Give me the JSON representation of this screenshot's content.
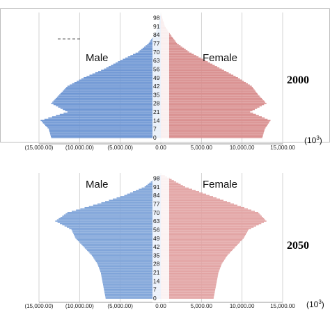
{
  "chart_data": [
    {
      "type": "bar",
      "orientation": "horizontal-pyramid",
      "year_label": "2000",
      "unit_label": "(10",
      "unit_exp": "3",
      "unit_close": ")",
      "male_label": "Male",
      "female_label": "Female",
      "age_ticks": [
        "0",
        "7",
        "14",
        "21",
        "28",
        "35",
        "42",
        "49",
        "56",
        "63",
        "70",
        "77",
        "84",
        "91",
        "98"
      ],
      "x_ticks": [
        "(15,000.00)",
        "(10,000.00)",
        "(5,000.00)",
        "0.00",
        "5,000.00",
        "10,000.00",
        "15,000.00"
      ],
      "xlim": [
        -15000,
        15000
      ],
      "age_range": [
        0,
        100
      ],
      "colors": {
        "male": "#6f97d4",
        "female": "#d98f8f"
      },
      "series": [
        {
          "name": "Male",
          "ages": [
            0,
            7,
            14,
            21,
            28,
            35,
            42,
            49,
            56,
            63,
            70,
            77,
            84,
            91,
            100
          ],
          "values": [
            13500,
            13800,
            14800,
            11500,
            13500,
            12500,
            11500,
            9500,
            7000,
            5000,
            2800,
            1500,
            800,
            300,
            50
          ]
        },
        {
          "name": "Female",
          "ages": [
            0,
            7,
            14,
            21,
            28,
            35,
            42,
            49,
            56,
            63,
            70,
            77,
            84,
            91,
            100
          ],
          "values": [
            12500,
            12800,
            13500,
            11000,
            13000,
            12000,
            11200,
            9500,
            7500,
            5500,
            3500,
            2000,
            1200,
            500,
            80
          ]
        }
      ]
    },
    {
      "type": "bar",
      "orientation": "horizontal-pyramid",
      "year_label": "2050",
      "unit_label": "(10",
      "unit_exp": "3",
      "unit_close": ")",
      "male_label": "Male",
      "female_label": "Female",
      "age_ticks": [
        "0",
        "7",
        "14",
        "21",
        "28",
        "35",
        "42",
        "49",
        "56",
        "63",
        "70",
        "77",
        "84",
        "91",
        "98"
      ],
      "x_ticks": [
        "(15,000.00)",
        "(10,000.00)",
        "(5,000.00)",
        "0.00",
        "5,000.00",
        "10,000.00",
        "15,000.00"
      ],
      "xlim": [
        -15000,
        15000
      ],
      "age_range": [
        0,
        100
      ],
      "colors": {
        "male": "#7fa4d9",
        "female": "#e2a3a3"
      },
      "series": [
        {
          "name": "Male",
          "ages": [
            0,
            7,
            14,
            21,
            28,
            35,
            42,
            49,
            56,
            63,
            70,
            77,
            84,
            91,
            100
          ],
          "values": [
            6800,
            7000,
            7200,
            7400,
            7800,
            8500,
            9500,
            10500,
            11000,
            13000,
            11500,
            7800,
            4500,
            2000,
            300
          ]
        },
        {
          "name": "Female",
          "ages": [
            0,
            7,
            14,
            21,
            28,
            35,
            42,
            49,
            56,
            63,
            70,
            77,
            84,
            91,
            100
          ],
          "values": [
            6500,
            6700,
            6900,
            7100,
            7500,
            8200,
            9200,
            10200,
            10800,
            13000,
            12000,
            9000,
            6000,
            3000,
            500
          ]
        }
      ]
    }
  ]
}
